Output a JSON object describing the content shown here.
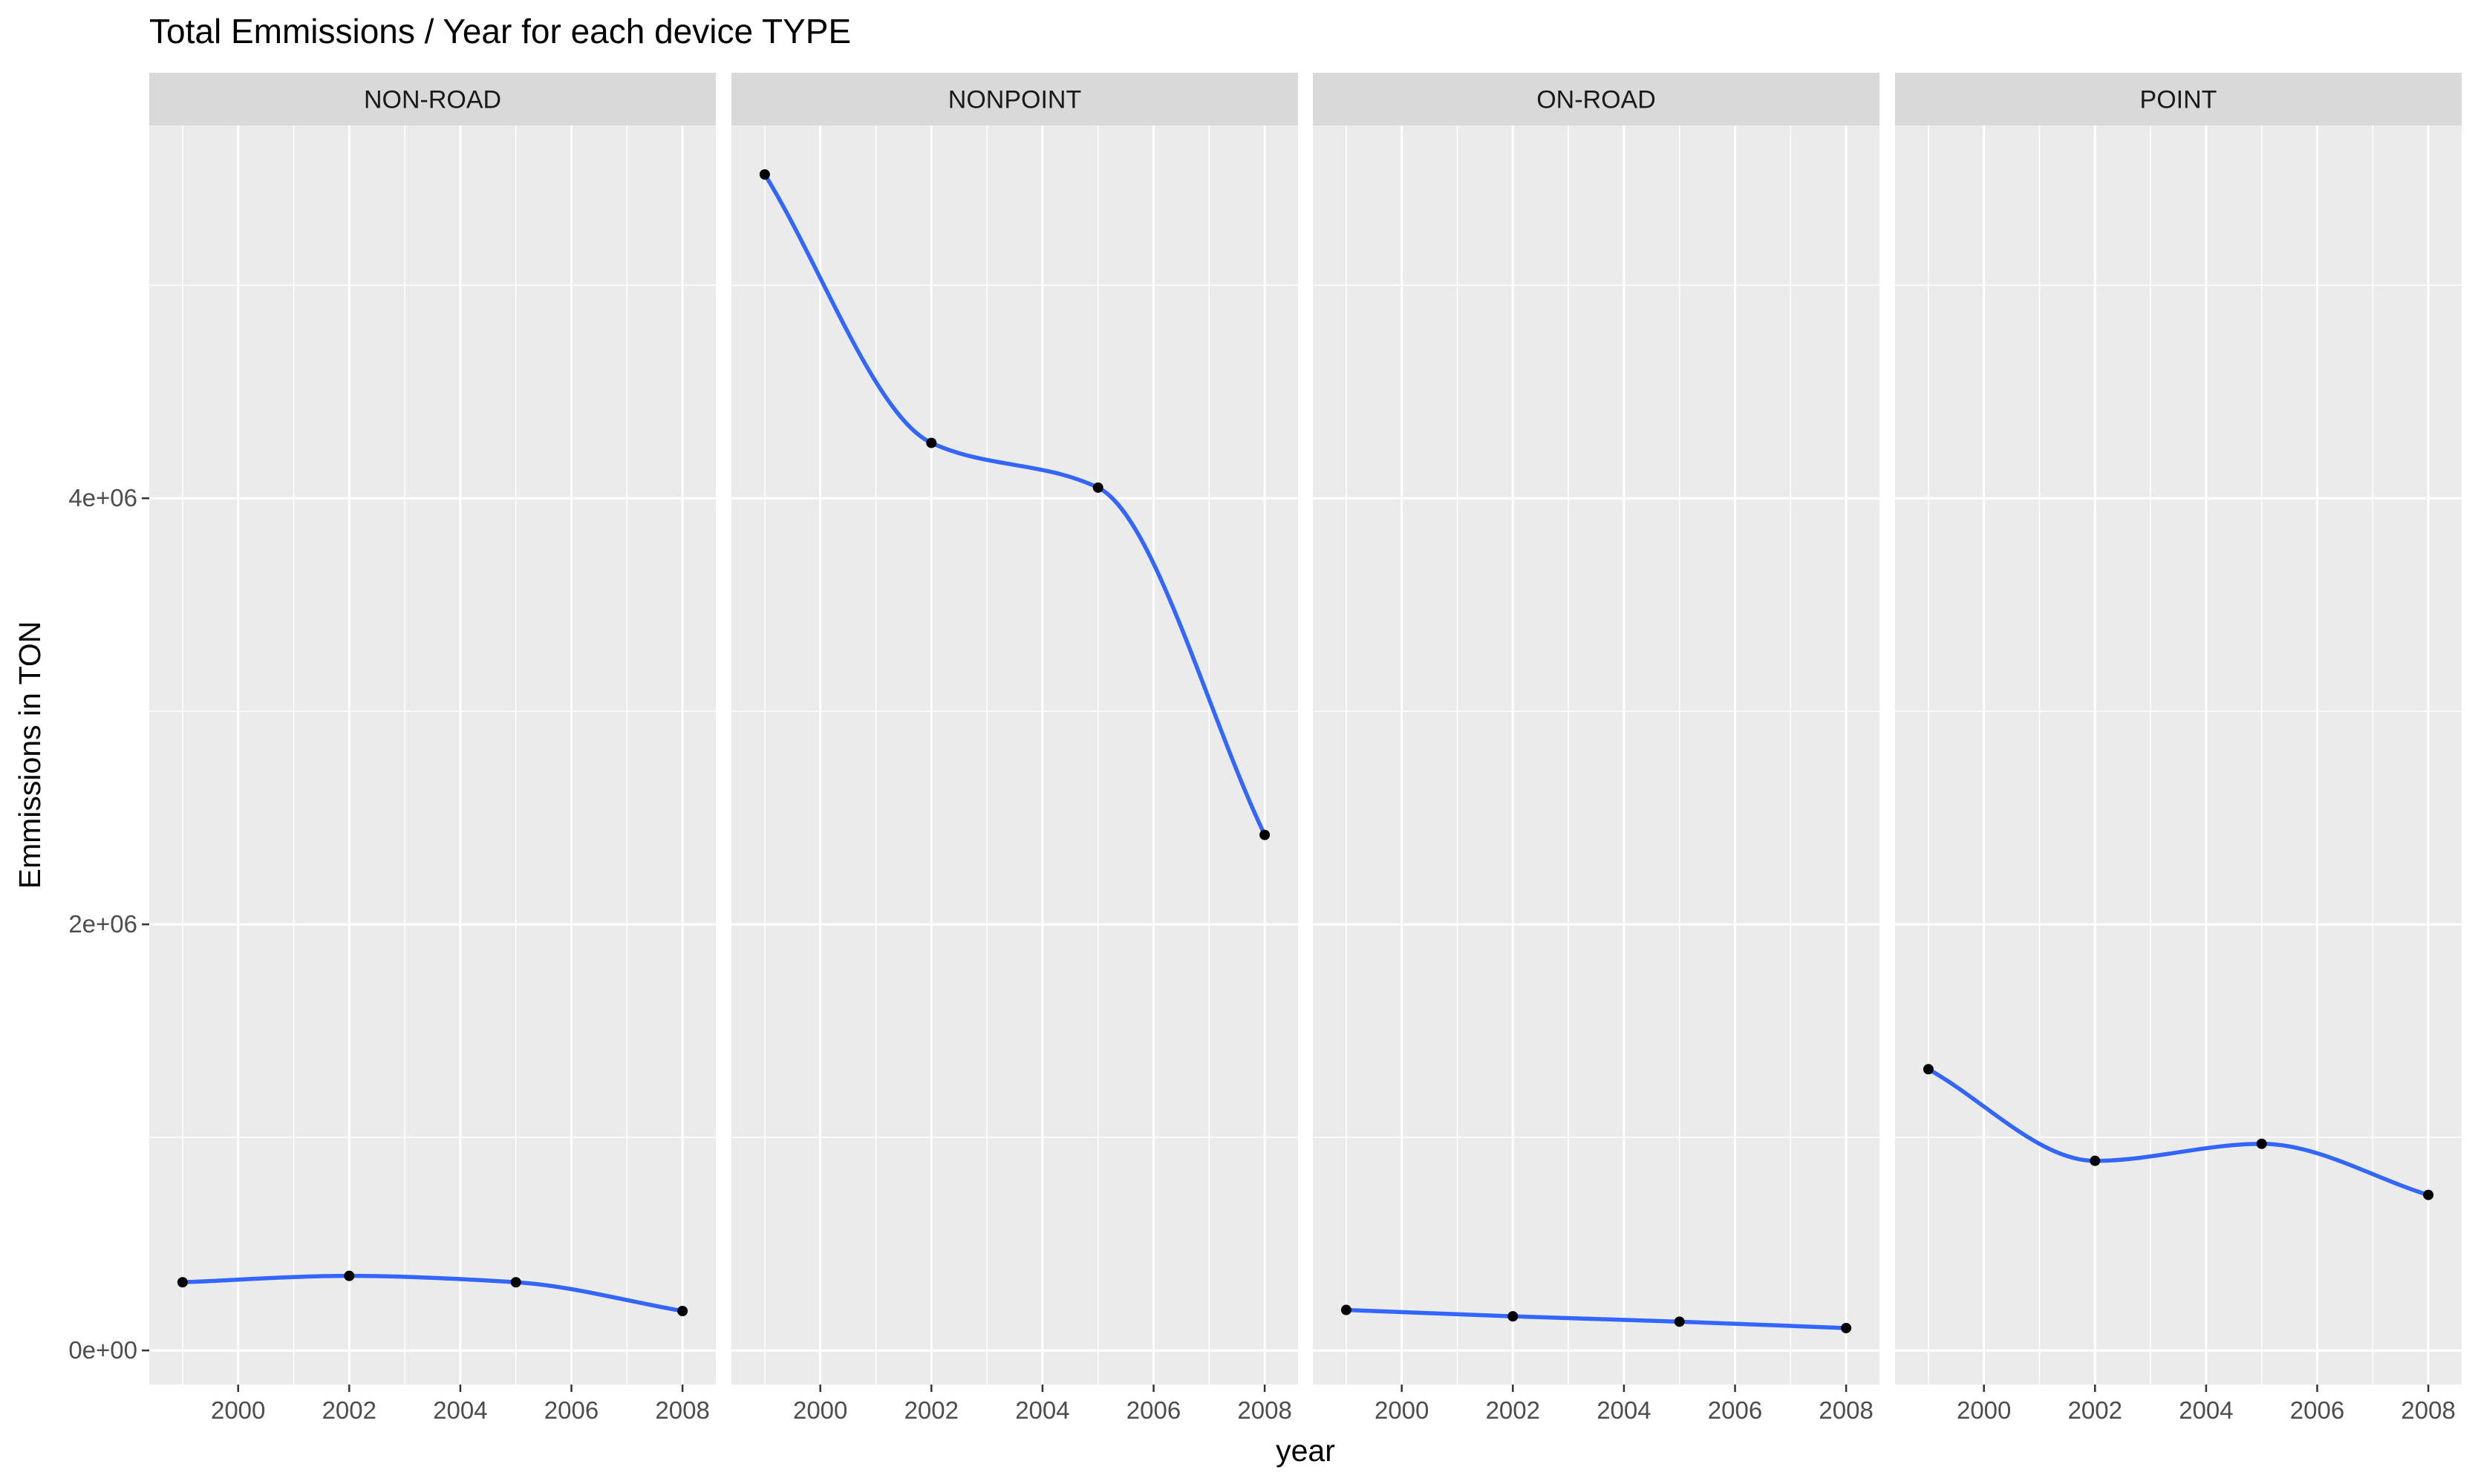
{
  "chart_data": {
    "type": "line",
    "title": "Total Emmissions / Year for each device TYPE",
    "xlabel": "year",
    "ylabel": "Emmissions in TON",
    "xlim": [
      1998.4,
      2008.6
    ],
    "ylim": [
      -160000,
      5750000
    ],
    "x_ticks": [
      2000,
      2002,
      2004,
      2006,
      2008
    ],
    "x_tick_labels": [
      "2000",
      "2002",
      "2004",
      "2006",
      "2008"
    ],
    "y_ticks": [
      0,
      2000000,
      4000000
    ],
    "y_tick_labels": [
      "0e+00",
      "2e+06",
      "4e+06"
    ],
    "grid": true,
    "line_color": "#3366FF",
    "point_color": "#000000",
    "panel_background": "#EBEBEB",
    "strip_background": "#D9D9D9",
    "panels": [
      {
        "name": "NON-ROAD",
        "x": [
          1999,
          2002,
          2005,
          2008
        ],
        "y": [
          320000,
          350000,
          320000,
          185000
        ]
      },
      {
        "name": "NONPOINT",
        "x": [
          1999,
          2002,
          2005,
          2008
        ],
        "y": [
          5520000,
          4260000,
          4050000,
          2420000
        ]
      },
      {
        "name": "ON-ROAD",
        "x": [
          1999,
          2002,
          2005,
          2008
        ],
        "y": [
          190000,
          160000,
          135000,
          105000
        ]
      },
      {
        "name": "POINT",
        "x": [
          1999,
          2002,
          2005,
          2008
        ],
        "y": [
          1320000,
          890000,
          970000,
          730000
        ]
      }
    ]
  }
}
